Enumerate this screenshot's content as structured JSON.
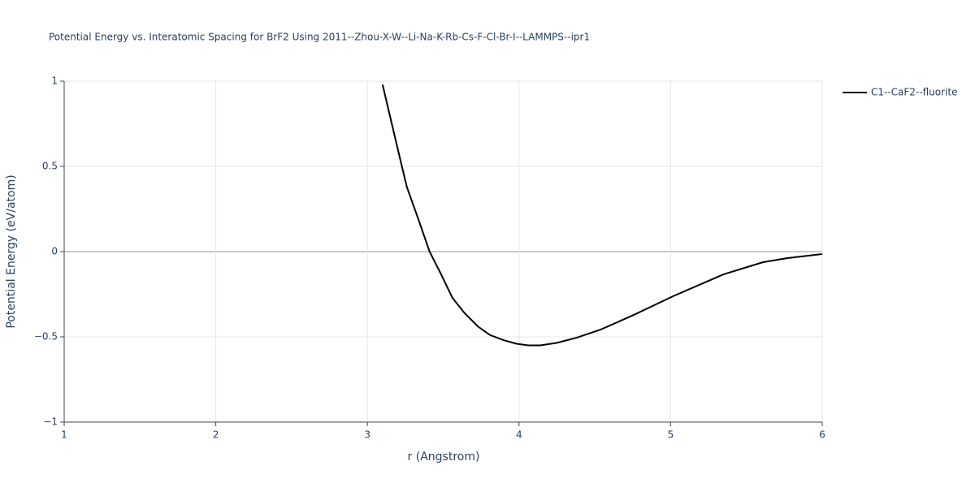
{
  "chart_data": {
    "type": "line",
    "title": "Potential Energy vs. Interatomic Spacing for BrF2 Using 2011--Zhou-X-W--Li-Na-K-Rb-Cs-F-Cl-Br-I--LAMMPS--ipr1",
    "x_label": "r (Angstrom)",
    "y_label": "Potential Energy (eV/atom)",
    "xlim": [
      1,
      6
    ],
    "xticks": [
      1,
      2,
      3,
      4,
      5,
      6
    ],
    "ylim": [
      -1,
      1
    ],
    "yticks": [
      {
        "value": -1,
        "label": "−1"
      },
      {
        "value": -0.5,
        "label": "−0.5"
      },
      0,
      0.5,
      1
    ],
    "grid": true,
    "legend": "right",
    "x": [
      3.1,
      3.19,
      3.26,
      3.34,
      3.41,
      3.49,
      3.56,
      3.64,
      3.73,
      3.81,
      3.9,
      3.98,
      4.06,
      4.14,
      4.25,
      4.38,
      4.54,
      4.76,
      5.02,
      5.35,
      5.61,
      5.77,
      6.0
    ],
    "series": [
      {
        "name": "C1--CaF2--fluorite",
        "color": "#000000",
        "values": [
          0.98,
          0.64,
          0.38,
          0.18,
          0.0,
          -0.14,
          -0.27,
          -0.36,
          -0.44,
          -0.49,
          -0.52,
          -0.54,
          -0.55,
          -0.55,
          -0.535,
          -0.505,
          -0.457,
          -0.37,
          -0.26,
          -0.133,
          -0.062,
          -0.038,
          -0.014
        ]
      }
    ]
  }
}
